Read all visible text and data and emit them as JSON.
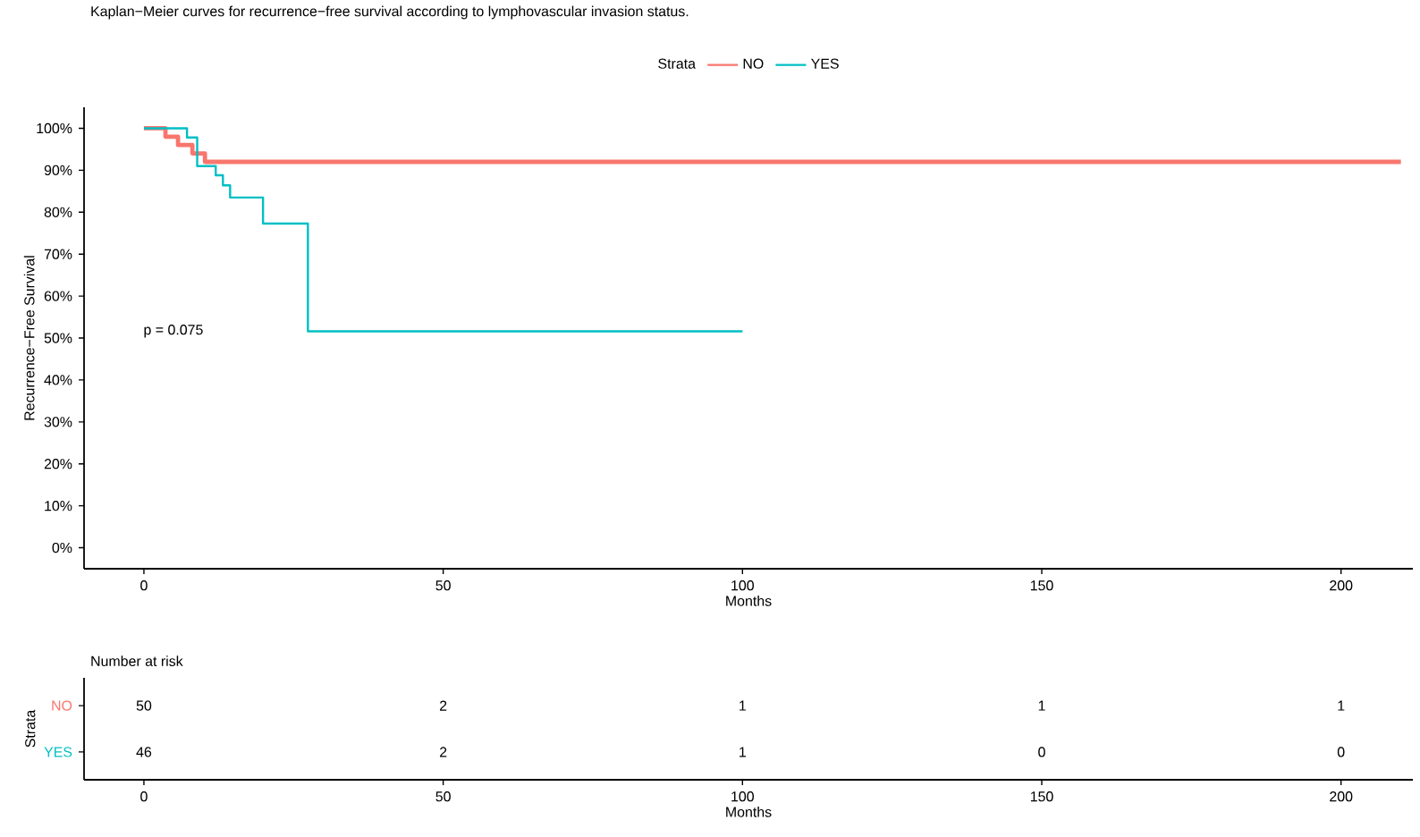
{
  "chart_data": [
    {
      "type": "step",
      "title": "Kaplan−Meier curves for recurrence−free survival according to lymphovascular invasion status.",
      "xlabel": "Months",
      "ylabel": "Recurrence−Free Survival",
      "legend_title": "Strata",
      "legend": "top",
      "series": [
        {
          "name": "NO",
          "color": "#f8766d",
          "x": [
            0,
            3.6,
            5.7,
            8.1,
            10.2,
            210
          ],
          "values": [
            100,
            98,
            96,
            94,
            92,
            92
          ]
        },
        {
          "name": "YES",
          "color": "#00bfc4",
          "x": [
            0,
            7.2,
            8.9,
            12.0,
            13.2,
            14.4,
            19.9,
            27.4,
            100
          ],
          "values": [
            100,
            97.8,
            91.0,
            88.8,
            86.4,
            83.5,
            77.3,
            51.6,
            51.6
          ]
        }
      ],
      "xlim": [
        -10,
        212
      ],
      "xticks": [
        0,
        50,
        100,
        150,
        200
      ],
      "ylim": [
        -5,
        105
      ],
      "yticks": [
        {
          "value": 0,
          "label": "0%"
        },
        {
          "value": 10,
          "label": "10%"
        },
        {
          "value": 20,
          "label": "20%"
        },
        {
          "value": 30,
          "label": "30%"
        },
        {
          "value": 40,
          "label": "40%"
        },
        {
          "value": 50,
          "label": "50%"
        },
        {
          "value": 60,
          "label": "60%"
        },
        {
          "value": 70,
          "label": "70%"
        },
        {
          "value": 80,
          "label": "80%"
        },
        {
          "value": 90,
          "label": "90%"
        },
        {
          "value": 100,
          "label": "100%"
        }
      ],
      "annotations": [
        "p = 0.075"
      ]
    },
    {
      "type": "heatmap",
      "title": "Number at risk",
      "xlabel": "Months",
      "ylabel": "Strata",
      "data_labels": true,
      "categories": [
        "0",
        "50",
        "100",
        "150",
        "200"
      ],
      "y_categories": [
        "NO",
        "YES"
      ],
      "cells": [
        [
          50,
          2,
          1,
          1,
          1
        ],
        [
          46,
          2,
          1,
          0,
          0
        ]
      ]
    }
  ]
}
